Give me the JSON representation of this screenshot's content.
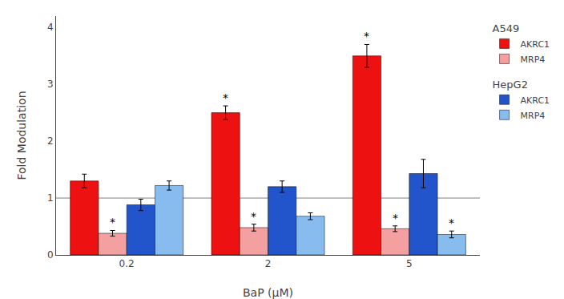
{
  "chart_data": {
    "type": "bar",
    "xlabel": "BaP (μM)",
    "ylabel": "Fold Modulation",
    "categories": [
      "0.2",
      "2",
      "5"
    ],
    "series": [
      {
        "name": "AKRC1",
        "group": "A549",
        "color": "#ee1111",
        "values": [
          1.3,
          2.5,
          3.5
        ],
        "errors": [
          0.12,
          0.12,
          0.2
        ],
        "annotations": [
          null,
          "*",
          "*"
        ]
      },
      {
        "name": "MRP4",
        "group": "A549",
        "color": "#f4a0a0",
        "values": [
          0.38,
          0.48,
          0.46
        ],
        "errors": [
          0.05,
          0.06,
          0.05
        ],
        "annotations": [
          "*",
          "*",
          "*"
        ]
      },
      {
        "name": "AKRC1",
        "group": "HepG2",
        "color": "#2255cc",
        "values": [
          0.88,
          1.2,
          1.43
        ],
        "errors": [
          0.1,
          0.1,
          0.25
        ],
        "annotations": [
          null,
          null,
          null
        ]
      },
      {
        "name": "MRP4",
        "group": "HepG2",
        "color": "#88bbee",
        "values": [
          1.22,
          0.68,
          0.36
        ],
        "errors": [
          0.08,
          0.06,
          0.06
        ],
        "annotations": [
          null,
          null,
          "*"
        ]
      }
    ],
    "hline": 1.0,
    "ylim": [
      0,
      4.2
    ],
    "yticks": [
      0,
      1,
      2,
      3,
      4
    ],
    "grid": false,
    "legend": "right"
  }
}
